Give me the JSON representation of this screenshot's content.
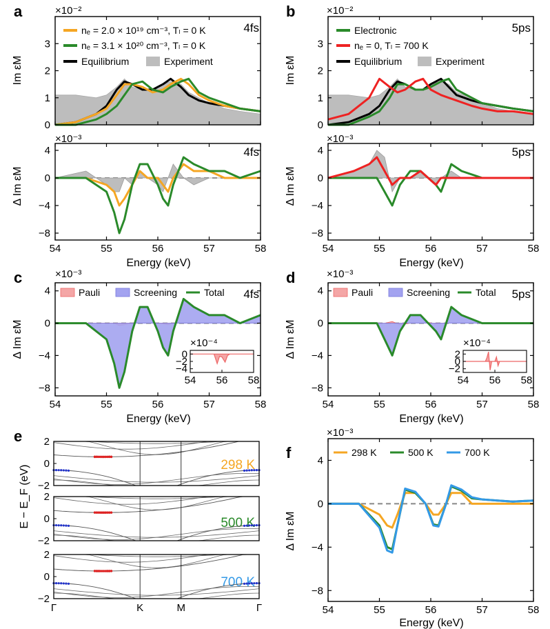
{
  "colors": {
    "orange": "#f5a623",
    "green": "#2a8a2a",
    "black": "#000000",
    "red": "#ee2222",
    "gray": "#bdbdbd",
    "blue": "#3399e6",
    "pauli": "#f4a6a6",
    "screening": "#a3a3f0",
    "dash": "#888888",
    "bandRed": "#dd2222",
    "bandBlue": "#2233cc"
  },
  "labels": {
    "a": "a",
    "b": "b",
    "c": "c",
    "d": "d",
    "e": "e",
    "f": "f"
  },
  "common": {
    "energy_xlabel": "Energy (keV)",
    "xticks": [
      "54",
      "55",
      "56",
      "57",
      "58"
    ],
    "imeps_ylabel": "Im εM",
    "dimeps_ylabel": "Δ Im εM",
    "mult_e2": "×10⁻²",
    "mult_e3": "×10⁻³",
    "mult_e4": "×10⁻⁴"
  },
  "panel_a": {
    "time": "4fs",
    "yticks_top": [
      "0",
      "1",
      "2",
      "3"
    ],
    "yticks_bottom": [
      "−8",
      "−4",
      "0",
      "4"
    ],
    "legend": [
      "nₑ = 2.0 × 10¹⁹ cm⁻³,  Tₗ = 0 K",
      "nₑ = 3.1 × 10²⁰ cm⁻³,  Tₗ = 0 K",
      "Equilibrium",
      "Experiment"
    ]
  },
  "panel_b": {
    "time": "5ps",
    "yticks_top": [
      "0",
      "1",
      "2",
      "3"
    ],
    "yticks_bottom": [
      "−8",
      "−4",
      "0",
      "4"
    ],
    "legend": [
      "Electronic",
      "nₑ = 0,  Tₗ = 700 K",
      "Equilibrium",
      "Experiment"
    ]
  },
  "panel_c": {
    "time": "4fs",
    "yticks": [
      "−8",
      "−4",
      "0",
      "4"
    ],
    "legend": [
      "Pauli",
      "Screening",
      "Total"
    ],
    "inset_yticks": [
      "0",
      "−2",
      "−4"
    ],
    "inset_xticks": [
      "54",
      "56",
      "58"
    ]
  },
  "panel_d": {
    "time": "5ps",
    "yticks": [
      "−8",
      "−4",
      "0",
      "4"
    ],
    "legend": [
      "Pauli",
      "Screening",
      "Total"
    ],
    "inset_yticks": [
      "2",
      "0",
      "−2"
    ],
    "inset_xticks": [
      "54",
      "56",
      "58"
    ]
  },
  "panel_e": {
    "ylabel": "E − E_F (eV)",
    "yticks": [
      "2",
      "0",
      "−2"
    ],
    "kpoints": [
      "Γ",
      "K",
      "M",
      "Γ"
    ],
    "temps": [
      "298 K",
      "500 K",
      "700 K"
    ]
  },
  "panel_f": {
    "yticks": [
      "−8",
      "−4",
      "0",
      "4"
    ],
    "legend": [
      "298 K",
      "500 K",
      "700 K"
    ]
  },
  "chart_data": [
    {
      "type": "line",
      "panel": "a-top",
      "title": "4fs",
      "xlabel": "",
      "ylabel": "Im εM",
      "xlim": [
        54,
        58
      ],
      "ylim": [
        0,
        0.04
      ],
      "x": [
        54,
        54.4,
        54.8,
        55.0,
        55.2,
        55.35,
        55.5,
        55.7,
        55.9,
        56.1,
        56.25,
        56.45,
        56.6,
        56.8,
        57.0,
        57.3,
        57.6,
        58
      ],
      "series": [
        {
          "name": "Experiment",
          "values": [
            0.011,
            0.011,
            0.01,
            0.011,
            0.014,
            0.017,
            0.014,
            0.013,
            0.013,
            0.015,
            0.016,
            0.015,
            0.012,
            0.01,
            0.008,
            0.006,
            0.005,
            0.004
          ]
        },
        {
          "name": "Equilibrium",
          "values": [
            0.0,
            0.001,
            0.004,
            0.007,
            0.013,
            0.016,
            0.015,
            0.013,
            0.013,
            0.015,
            0.017,
            0.014,
            0.011,
            0.009,
            0.008,
            0.007,
            0.006,
            0.005
          ]
        },
        {
          "name": "nₑ = 2.0 × 10¹⁹ cm⁻³,  Tₗ = 0 K",
          "values": [
            0.0,
            0.001,
            0.004,
            0.006,
            0.011,
            0.015,
            0.015,
            0.014,
            0.012,
            0.013,
            0.015,
            0.017,
            0.015,
            0.011,
            0.009,
            0.007,
            0.006,
            0.005
          ]
        },
        {
          "name": "nₑ = 3.1 × 10²⁰ cm⁻³,  Tₗ = 0 K",
          "values": [
            0.0,
            0.0,
            0.002,
            0.004,
            0.007,
            0.011,
            0.015,
            0.016,
            0.013,
            0.012,
            0.014,
            0.016,
            0.017,
            0.012,
            0.01,
            0.008,
            0.006,
            0.005
          ]
        }
      ]
    },
    {
      "type": "line",
      "panel": "a-bottom",
      "title": "4fs",
      "xlabel": "Energy (keV)",
      "ylabel": "Δ Im εM",
      "xlim": [
        54,
        58
      ],
      "ylim": [
        -0.009,
        0.005
      ],
      "x": [
        54,
        54.6,
        55.0,
        55.15,
        55.25,
        55.35,
        55.5,
        55.65,
        55.8,
        56.0,
        56.1,
        56.2,
        56.3,
        56.5,
        56.7,
        57.0,
        57.3,
        57.6,
        58
      ],
      "series": [
        {
          "name": "Experiment",
          "values": [
            0.0,
            0.001,
            -0.001,
            -0.002,
            -0.002,
            0.0,
            -0.001,
            0.001,
            0.0,
            -0.001,
            -0.002,
            0.0,
            0.002,
            0.0,
            -0.001,
            0.0,
            0.0,
            0.0,
            0.0
          ]
        },
        {
          "name": "nₑ = 2.0 × 10¹⁹ cm⁻³,  Tₗ = 0 K",
          "values": [
            0.0,
            0.0,
            -0.001,
            -0.002,
            -0.004,
            -0.003,
            -0.001,
            0.001,
            0.0,
            0.0,
            -0.001,
            -0.002,
            0.0,
            0.002,
            0.001,
            0.001,
            0.0,
            0.0,
            0.0
          ]
        },
        {
          "name": "nₑ = 3.1 × 10²⁰ cm⁻³,  Tₗ = 0 K",
          "values": [
            0.0,
            0.0,
            -0.002,
            -0.005,
            -0.008,
            -0.006,
            -0.001,
            0.002,
            0.002,
            -0.001,
            -0.003,
            -0.004,
            -0.001,
            0.003,
            0.002,
            0.001,
            0.001,
            0.0,
            0.001
          ]
        }
      ]
    },
    {
      "type": "line",
      "panel": "b-top",
      "title": "5ps",
      "xlabel": "",
      "ylabel": "Im εM",
      "xlim": [
        54,
        58
      ],
      "ylim": [
        0,
        0.04
      ],
      "x": [
        54,
        54.4,
        54.8,
        55.0,
        55.2,
        55.35,
        55.5,
        55.7,
        55.85,
        56.0,
        56.2,
        56.35,
        56.5,
        56.8,
        57.0,
        57.3,
        57.6,
        58
      ],
      "series": [
        {
          "name": "Experiment",
          "values": [
            0.011,
            0.011,
            0.01,
            0.011,
            0.014,
            0.017,
            0.014,
            0.013,
            0.013,
            0.015,
            0.016,
            0.015,
            0.012,
            0.01,
            0.008,
            0.006,
            0.005,
            0.004
          ]
        },
        {
          "name": "Equilibrium",
          "values": [
            0.0,
            0.001,
            0.004,
            0.007,
            0.013,
            0.016,
            0.015,
            0.013,
            0.013,
            0.015,
            0.017,
            0.014,
            0.011,
            0.009,
            0.008,
            0.007,
            0.006,
            0.005
          ]
        },
        {
          "name": "Electronic",
          "values": [
            0.0,
            0.0,
            0.003,
            0.005,
            0.01,
            0.015,
            0.015,
            0.013,
            0.013,
            0.014,
            0.016,
            0.017,
            0.013,
            0.01,
            0.008,
            0.007,
            0.006,
            0.005
          ]
        },
        {
          "name": "nₑ = 0,  Tₗ = 700 K",
          "values": [
            0.002,
            0.004,
            0.01,
            0.017,
            0.014,
            0.012,
            0.013,
            0.016,
            0.017,
            0.013,
            0.011,
            0.01,
            0.009,
            0.007,
            0.006,
            0.005,
            0.005,
            0.004
          ]
        }
      ]
    },
    {
      "type": "line",
      "panel": "b-bottom",
      "title": "5ps",
      "xlabel": "Energy (keV)",
      "ylabel": "Δ Im εM",
      "xlim": [
        54,
        58
      ],
      "ylim": [
        -0.009,
        0.005
      ],
      "x": [
        54,
        54.5,
        54.8,
        54.95,
        55.1,
        55.25,
        55.4,
        55.6,
        55.8,
        55.95,
        56.1,
        56.2,
        56.4,
        56.6,
        57.0,
        57.3,
        57.6,
        58
      ],
      "series": [
        {
          "name": "Experiment",
          "values": [
            0.0,
            0.001,
            0.002,
            0.004,
            0.003,
            -0.002,
            0.0,
            0.0,
            0.001,
            0.0,
            -0.001,
            0.0,
            0.001,
            0.0,
            0.0,
            0.0,
            0.0,
            0.0
          ]
        },
        {
          "name": "Electronic",
          "values": [
            0.0,
            0.0,
            0.0,
            0.0,
            -0.002,
            -0.004,
            -0.001,
            0.001,
            0.001,
            0.0,
            -0.001,
            -0.002,
            0.002,
            0.001,
            0.0,
            0.0,
            0.0,
            0.0
          ]
        },
        {
          "name": "nₑ = 0,  Tₗ = 700 K",
          "values": [
            0.0,
            0.001,
            0.002,
            0.003,
            0.001,
            -0.001,
            0.0,
            0.0,
            0.001,
            0.0,
            -0.001,
            0.0,
            0.0,
            0.0,
            0.0,
            0.0,
            0.0,
            0.0
          ]
        }
      ]
    },
    {
      "type": "area",
      "panel": "c",
      "title": "4fs",
      "xlabel": "Energy (keV)",
      "ylabel": "Δ Im εM",
      "xlim": [
        54,
        58
      ],
      "ylim": [
        -0.009,
        0.005
      ],
      "x": [
        54,
        54.6,
        55.0,
        55.15,
        55.25,
        55.35,
        55.5,
        55.65,
        55.8,
        56.0,
        56.1,
        56.2,
        56.3,
        56.5,
        56.7,
        57.0,
        57.3,
        57.6,
        58
      ],
      "series": [
        {
          "name": "Pauli",
          "values": [
            0,
            0,
            0,
            0,
            -0.0003,
            -0.0002,
            0,
            0,
            0,
            0,
            -0.0001,
            -0.0002,
            0,
            0,
            0,
            0,
            0,
            0,
            0
          ]
        },
        {
          "name": "Screening",
          "values": [
            0.0,
            0.0,
            -0.002,
            -0.005,
            -0.008,
            -0.006,
            -0.001,
            0.002,
            0.002,
            -0.001,
            -0.003,
            -0.004,
            -0.001,
            0.003,
            0.002,
            0.001,
            0.001,
            0.0,
            0.001
          ]
        },
        {
          "name": "Total",
          "values": [
            0.0,
            0.0,
            -0.002,
            -0.005,
            -0.008,
            -0.006,
            -0.001,
            0.002,
            0.002,
            -0.001,
            -0.003,
            -0.004,
            -0.001,
            0.003,
            0.002,
            0.001,
            0.001,
            0.0,
            0.001
          ]
        }
      ]
    },
    {
      "type": "area",
      "panel": "d",
      "title": "5ps",
      "xlabel": "Energy (keV)",
      "ylabel": "Δ Im εM",
      "xlim": [
        54,
        58
      ],
      "ylim": [
        -0.009,
        0.005
      ],
      "x": [
        54,
        54.5,
        54.8,
        54.95,
        55.1,
        55.25,
        55.4,
        55.6,
        55.8,
        55.95,
        56.1,
        56.2,
        56.4,
        56.6,
        57.0,
        57.3,
        57.6,
        58
      ],
      "series": [
        {
          "name": "Pauli",
          "values": [
            0,
            0,
            0,
            0,
            0,
            0.0002,
            -0.0002,
            0,
            0,
            0.0001,
            -0.0001,
            0,
            0,
            0,
            0,
            0,
            0,
            0
          ]
        },
        {
          "name": "Screening",
          "values": [
            0.0,
            0.0,
            0.0,
            0.0,
            -0.002,
            -0.004,
            -0.001,
            0.001,
            0.001,
            0.0,
            -0.001,
            -0.002,
            0.002,
            0.001,
            0.0,
            0.0,
            0.0,
            0.0
          ]
        },
        {
          "name": "Total",
          "values": [
            0.0,
            0.0,
            0.0,
            0.0,
            -0.002,
            -0.004,
            -0.001,
            0.001,
            0.001,
            0.0,
            -0.001,
            -0.002,
            0.002,
            0.001,
            0.0,
            0.0,
            0.0,
            0.0
          ]
        }
      ]
    },
    {
      "type": "line",
      "panel": "f",
      "title": "",
      "xlabel": "Energy (keV)",
      "ylabel": "Δ Im εM",
      "xlim": [
        54,
        58
      ],
      "ylim": [
        -0.009,
        0.006
      ],
      "x": [
        54,
        54.6,
        55.0,
        55.15,
        55.25,
        55.35,
        55.5,
        55.7,
        55.9,
        56.05,
        56.15,
        56.3,
        56.4,
        56.6,
        56.8,
        57.0,
        57.3,
        57.6,
        58
      ],
      "series": [
        {
          "name": "298 K",
          "values": [
            0.0,
            0.0,
            -0.001,
            -0.002,
            -0.0022,
            -0.001,
            0.001,
            0.001,
            0.0,
            -0.001,
            -0.001,
            0.0,
            0.001,
            0.001,
            0.0,
            0.0,
            0.0,
            0.0,
            0.0
          ]
        },
        {
          "name": "500 K",
          "values": [
            0.0,
            0.0,
            -0.002,
            -0.004,
            -0.0042,
            -0.002,
            0.0013,
            0.001,
            0.0,
            -0.0019,
            -0.002,
            0.0,
            0.0016,
            0.0012,
            0.0005,
            0.0004,
            0.0003,
            0.0002,
            0.0003
          ]
        },
        {
          "name": "700 K",
          "values": [
            0.0,
            0.0,
            -0.0022,
            -0.0043,
            -0.0045,
            -0.002,
            0.0014,
            0.0011,
            0.0,
            -0.002,
            -0.0021,
            0.0,
            0.0017,
            0.0013,
            0.0006,
            0.0004,
            0.0003,
            0.0002,
            0.0003
          ]
        }
      ]
    }
  ]
}
